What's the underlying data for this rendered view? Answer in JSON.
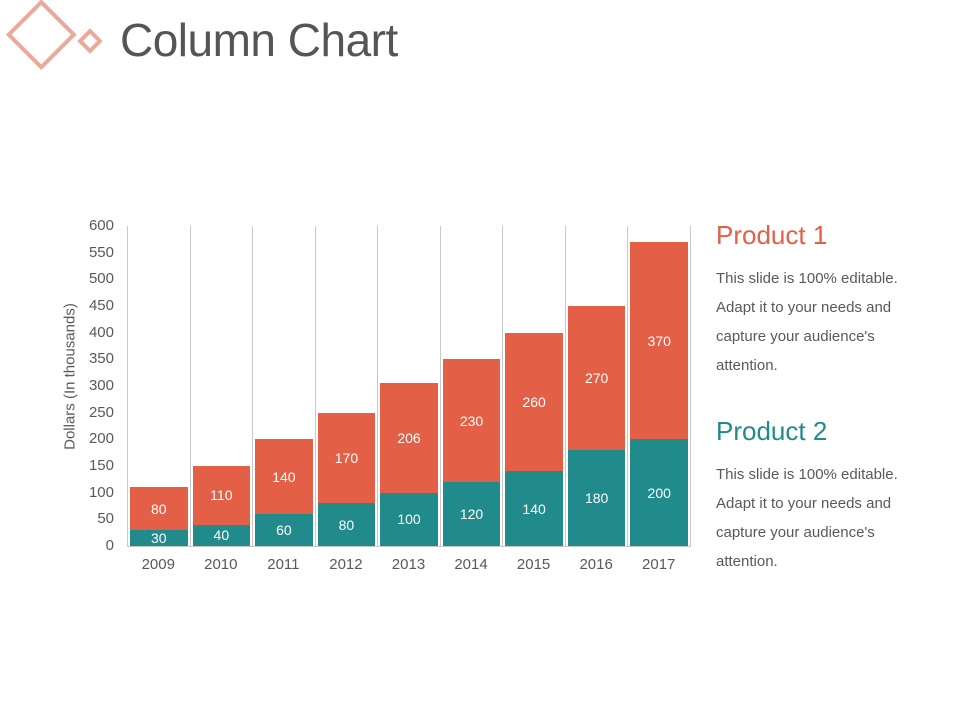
{
  "title": "Column Chart",
  "logo_icon": "diamond-outline-icon",
  "colors": {
    "product1": "#e35f45",
    "product2": "#218a8a",
    "title_text": "#555555",
    "body_text": "#595959",
    "logo": "#eba99b",
    "grid": "#c8c8c8"
  },
  "chart_data": {
    "type": "bar",
    "stacked": true,
    "title": "Column Chart",
    "xlabel": "",
    "ylabel": "Dollars (In thousands)",
    "ylim": [
      0,
      600
    ],
    "yticks": [
      0,
      50,
      100,
      150,
      200,
      250,
      300,
      350,
      400,
      450,
      500,
      550,
      600
    ],
    "categories": [
      "2009",
      "2010",
      "2011",
      "2012",
      "2013",
      "2014",
      "2015",
      "2016",
      "2017"
    ],
    "series": [
      {
        "name": "Product 2",
        "color": "#218a8a",
        "values": [
          30,
          40,
          60,
          80,
          100,
          120,
          140,
          180,
          200
        ]
      },
      {
        "name": "Product 1",
        "color": "#e35f45",
        "values": [
          80,
          110,
          140,
          170,
          206,
          230,
          260,
          270,
          370
        ]
      }
    ],
    "grid": "vertical separators",
    "legend": "right side text panels"
  },
  "panels": [
    {
      "heading": "Product 1",
      "color": "#e35f45",
      "lines": [
        "This slide is 100% editable.",
        "Adapt it to your needs and",
        "capture your audience's",
        "attention."
      ]
    },
    {
      "heading": "Product 2",
      "color": "#218a8a",
      "lines": [
        "This slide is 100% editable.",
        "Adapt it to your needs and",
        "capture your audience's",
        "attention."
      ]
    }
  ]
}
